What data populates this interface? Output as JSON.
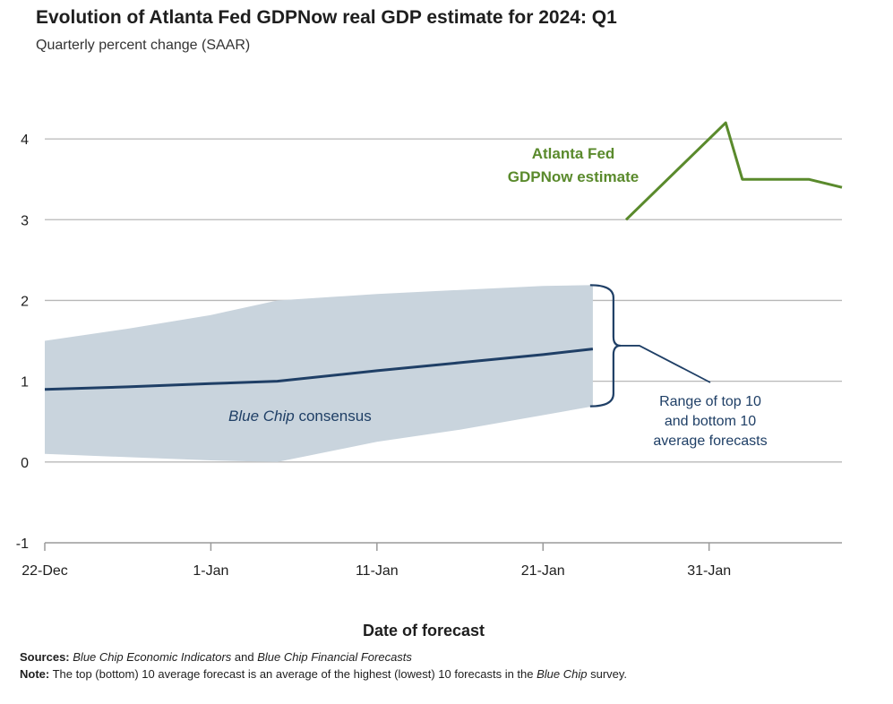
{
  "chart_data": {
    "type": "line",
    "title": "Evolution of Atlanta Fed GDPNow real GDP estimate for 2024: Q1",
    "subtitle": "Quarterly percent change (SAAR)",
    "xlabel": "Date of forecast",
    "ylabel": "",
    "ylim": [
      -1,
      4.5
    ],
    "yticks": [
      -1,
      0,
      1,
      2,
      3,
      4
    ],
    "ytick_labels": [
      "-1",
      "0",
      "1",
      "2",
      "3",
      "4"
    ],
    "x_unit": "days since 22-Dec",
    "xlim": [
      0,
      48
    ],
    "xticks": [
      0,
      10,
      20,
      30,
      40
    ],
    "xtick_labels": [
      "22-Dec",
      "1-Jan",
      "11-Jan",
      "21-Jan",
      "31-Jan"
    ],
    "grid": true,
    "series": [
      {
        "name": "Blue Chip consensus",
        "kind": "line",
        "color": "#1f3f66",
        "x": [
          0,
          5,
          10,
          14,
          20,
          25,
          30,
          33
        ],
        "y": [
          0.9,
          0.93,
          0.97,
          1.0,
          1.13,
          1.23,
          1.33,
          1.4
        ]
      },
      {
        "name": "Range of top 10 and bottom 10 average forecasts",
        "kind": "band",
        "color": "#c9d4dd",
        "x": [
          0,
          5,
          10,
          14,
          20,
          25,
          30,
          33
        ],
        "upper": [
          1.5,
          1.65,
          1.82,
          2.0,
          2.08,
          2.13,
          2.18,
          2.19
        ],
        "lower": [
          0.1,
          0.06,
          0.02,
          0.0,
          0.25,
          0.4,
          0.58,
          0.69
        ]
      },
      {
        "name": "Atlanta Fed GDPNow estimate",
        "kind": "line",
        "color": "#5a8a2c",
        "x": [
          35,
          41,
          42,
          45,
          46,
          47,
          48
        ],
        "y": [
          3.0,
          4.2,
          3.5,
          3.5,
          3.5,
          3.45,
          3.4
        ]
      }
    ],
    "annotations": {
      "gdpnow_label": [
        "Atlanta Fed",
        "GDPNow estimate"
      ],
      "consensus_label_italic": "Blue Chip",
      "consensus_label_rest": " consensus",
      "range_label": [
        "Range of top 10",
        "and bottom 10",
        "average forecasts"
      ]
    }
  },
  "footer": {
    "sources_label": "Sources:",
    "sources_italic_1": "Blue Chip Economic Indicators",
    "sources_and": " and ",
    "sources_italic_2": "Blue Chip Financial Forecasts",
    "note_label": "Note:",
    "note_text_1": " The top (bottom) 10 average forecast is an average of the highest (lowest) 10 forecasts in the ",
    "note_italic": "Blue Chip",
    "note_text_2": " survey."
  }
}
